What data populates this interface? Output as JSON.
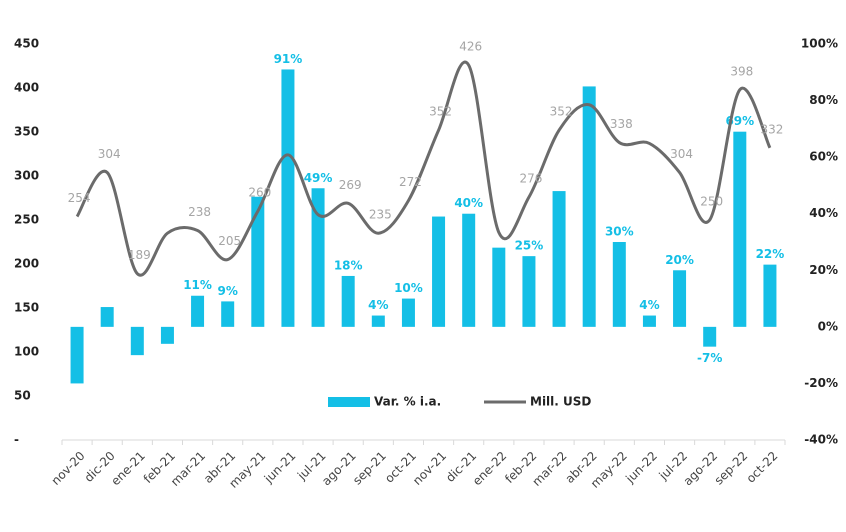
{
  "chart_data": {
    "type": "bar-line",
    "categories": [
      "nov-20",
      "dic-20",
      "ene-21",
      "feb-21",
      "mar-21",
      "abr-21",
      "may-21",
      "jun-21",
      "jul-21",
      "ago-21",
      "sep-21",
      "oct-21",
      "nov-21",
      "dic-21",
      "ene-22",
      "feb-22",
      "mar-22",
      "abr-22",
      "may-22",
      "jun-22",
      "jul-22",
      "ago-22",
      "sep-22",
      "oct-22"
    ],
    "series": [
      {
        "name": "Var. % i.a.",
        "type": "bar",
        "axis": "y2",
        "color": "#14bfe6",
        "values": [
          -20,
          7,
          -10,
          -6,
          11,
          9,
          46,
          91,
          49,
          18,
          4,
          10,
          39,
          40,
          28,
          25,
          48,
          85,
          30,
          4,
          20,
          -7,
          69,
          22
        ],
        "value_labels": [
          null,
          null,
          null,
          null,
          "11%",
          "9%",
          null,
          "91%",
          "49%",
          "18%",
          "4%",
          "10%",
          null,
          "40%",
          null,
          "25%",
          null,
          null,
          "30%",
          "4%",
          "20%",
          "-7%",
          "69%",
          "22%"
        ]
      },
      {
        "name": "Mill. USD",
        "type": "line",
        "axis": "y",
        "color": "#6b6b6b",
        "values": [
          254,
          304,
          189,
          235,
          238,
          205,
          260,
          324,
          256,
          269,
          235,
          272,
          352,
          426,
          236,
          276,
          352,
          381,
          338,
          337,
          304,
          250,
          398,
          332
        ],
        "value_labels": [
          "254",
          "304",
          "189",
          null,
          "238",
          "205",
          "260",
          null,
          null,
          "269",
          "235",
          "272",
          "352",
          "426",
          null,
          "276",
          "352",
          null,
          "338",
          null,
          "304",
          "250",
          "398",
          "332"
        ]
      }
    ],
    "ylim": [
      0,
      450
    ],
    "yticks": [
      {
        "value": 0,
        "label": "-"
      },
      50,
      100,
      150,
      200,
      250,
      300,
      350,
      400,
      450
    ],
    "y2lim": [
      -40,
      100
    ],
    "y2ticks": [
      {
        "value": -40,
        "label": "-40%"
      },
      {
        "value": -20,
        "label": "-20%"
      },
      {
        "value": 0,
        "label": "0%"
      },
      {
        "value": 20,
        "label": "20%"
      },
      {
        "value": 40,
        "label": "40%"
      },
      {
        "value": 60,
        "label": "60%"
      },
      {
        "value": 80,
        "label": "80%"
      },
      {
        "value": 100,
        "label": "100%"
      }
    ],
    "legend": "bottom"
  }
}
